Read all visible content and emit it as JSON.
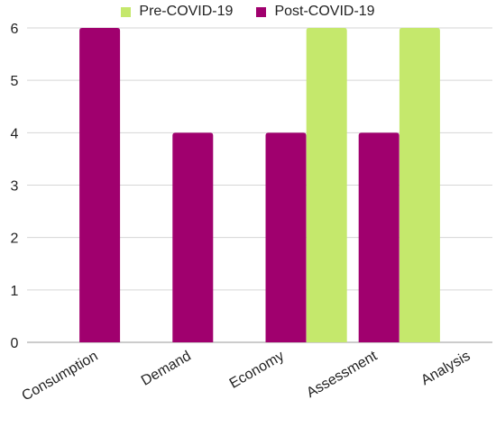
{
  "chart_data": {
    "type": "bar",
    "categories": [
      "Consumption",
      "Demand",
      "Economy",
      "Assessment",
      "Analysis"
    ],
    "series": [
      {
        "name": "Pre-COVID-19",
        "color": "#c5e86c",
        "values": [
          0,
          0,
          0,
          6,
          6
        ]
      },
      {
        "name": "Post-COVID-19",
        "color": "#a0006e",
        "values": [
          6,
          4,
          4,
          4,
          0
        ]
      }
    ],
    "yticks": [
      "0",
      "1",
      "2",
      "3",
      "4",
      "5",
      "6"
    ],
    "ylim": [
      0,
      6
    ],
    "grid": true,
    "legend_position": "top-center",
    "title": "",
    "xlabel": "",
    "ylabel": ""
  }
}
